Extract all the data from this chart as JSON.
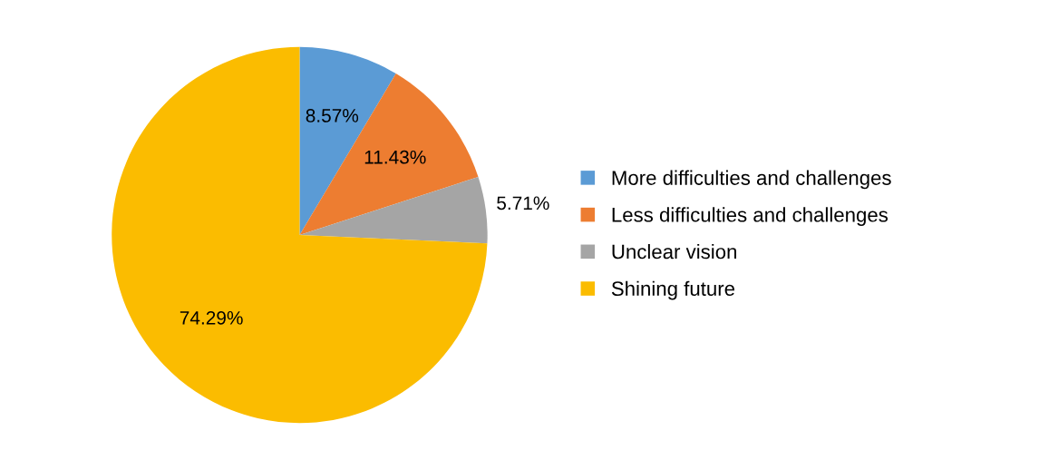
{
  "chart_data": {
    "type": "pie",
    "categories": [
      "More difficulties and challenges",
      "Less difficulties and challenges",
      "Unclear vision",
      "Shining future"
    ],
    "values": [
      8.57,
      11.43,
      5.71,
      74.29
    ],
    "colors": [
      "#5b9bd5",
      "#ed7d31",
      "#a5a5a5",
      "#fbbc00"
    ],
    "value_labels": [
      "8.57%",
      "11.43%",
      "5.71%",
      "74.29%"
    ],
    "legend": "right"
  }
}
